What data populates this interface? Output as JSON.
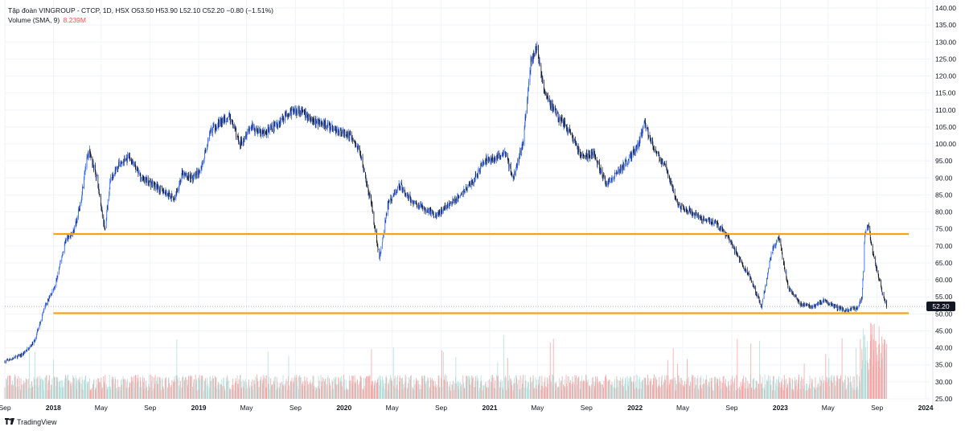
{
  "header": {
    "symbol_line": "Tập đoàn VINGROUP - CTCP, 1D, HSX  O53.50  H53.90  L52.10  C52.20  −0.80 (−1.51%)",
    "volume_label": "Volume (SMA, 9)",
    "volume_value": "8.239M"
  },
  "branding": {
    "name": "TradingView",
    "icon": "tradingview-logo-icon"
  },
  "last_price_label": "52.20",
  "colors": {
    "up": "#2962ff",
    "down": "#131722",
    "level": "#f7a21b",
    "vol_up": "#b2dfdb",
    "vol_down": "#f8a5a5",
    "grid": "#f0f3fa"
  },
  "chart_data": {
    "type": "candlestick",
    "ylim": [
      25,
      140
    ],
    "y_ticks": [
      "140.00",
      "135.00",
      "130.00",
      "125.00",
      "120.00",
      "115.00",
      "110.00",
      "105.00",
      "100.00",
      "95.00",
      "90.00",
      "85.00",
      "80.00",
      "75.00",
      "70.00",
      "65.00",
      "60.00",
      "55.00",
      "50.00",
      "45.00",
      "40.00",
      "35.00",
      "30.00",
      "25.00"
    ],
    "x_ticks": [
      "Sep",
      "2018",
      "May",
      "Sep",
      "2019",
      "May",
      "Sep",
      "2020",
      "May",
      "Sep",
      "2021",
      "May",
      "Sep",
      "2022",
      "May",
      "Sep",
      "2023",
      "May",
      "Sep",
      "2024"
    ],
    "x_range": [
      "2017-09-01",
      "2024-01-15"
    ],
    "last_price": 52.2,
    "horizontal_levels": [
      73.5,
      50.2
    ],
    "price_path": [
      [
        "2017-09-01",
        36
      ],
      [
        "2017-10-15",
        38
      ],
      [
        "2017-11-15",
        42
      ],
      [
        "2017-12-10",
        52
      ],
      [
        "2018-01-05",
        58
      ],
      [
        "2018-02-01",
        72
      ],
      [
        "2018-02-20",
        74
      ],
      [
        "2018-03-10",
        82
      ],
      [
        "2018-03-20",
        92
      ],
      [
        "2018-04-01",
        98
      ],
      [
        "2018-04-20",
        90
      ],
      [
        "2018-05-10",
        75
      ],
      [
        "2018-05-25",
        90
      ],
      [
        "2018-06-15",
        94
      ],
      [
        "2018-07-10",
        96
      ],
      [
        "2018-08-10",
        90
      ],
      [
        "2018-09-10",
        88
      ],
      [
        "2018-10-05",
        86
      ],
      [
        "2018-11-01",
        84
      ],
      [
        "2018-11-20",
        91
      ],
      [
        "2018-12-15",
        90
      ],
      [
        "2019-01-05",
        92
      ],
      [
        "2019-02-01",
        104
      ],
      [
        "2019-02-20",
        106
      ],
      [
        "2019-03-20",
        108
      ],
      [
        "2019-04-15",
        100
      ],
      [
        "2019-05-10",
        105
      ],
      [
        "2019-06-10",
        103
      ],
      [
        "2019-07-10",
        105
      ],
      [
        "2019-08-10",
        109
      ],
      [
        "2019-09-10",
        110
      ],
      [
        "2019-10-10",
        107
      ],
      [
        "2019-11-10",
        106
      ],
      [
        "2019-12-10",
        104
      ],
      [
        "2020-01-10",
        103
      ],
      [
        "2020-02-10",
        98
      ],
      [
        "2020-03-10",
        82
      ],
      [
        "2020-03-30",
        66
      ],
      [
        "2020-04-20",
        82
      ],
      [
        "2020-05-20",
        88
      ],
      [
        "2020-06-20",
        83
      ],
      [
        "2020-07-20",
        81
      ],
      [
        "2020-08-20",
        79
      ],
      [
        "2020-09-20",
        82
      ],
      [
        "2020-10-20",
        85
      ],
      [
        "2020-11-20",
        89
      ],
      [
        "2020-12-20",
        95
      ],
      [
        "2021-01-15",
        96
      ],
      [
        "2021-02-10",
        97
      ],
      [
        "2021-03-01",
        90
      ],
      [
        "2021-03-25",
        100
      ],
      [
        "2021-04-15",
        125
      ],
      [
        "2021-04-30",
        128
      ],
      [
        "2021-05-20",
        115
      ],
      [
        "2021-06-20",
        108
      ],
      [
        "2021-07-20",
        104
      ],
      [
        "2021-08-20",
        96
      ],
      [
        "2021-09-20",
        97
      ],
      [
        "2021-10-20",
        88
      ],
      [
        "2021-11-20",
        92
      ],
      [
        "2021-12-20",
        96
      ],
      [
        "2022-01-10",
        100
      ],
      [
        "2022-01-25",
        106
      ],
      [
        "2022-02-20",
        98
      ],
      [
        "2022-03-20",
        93
      ],
      [
        "2022-04-20",
        82
      ],
      [
        "2022-05-20",
        80
      ],
      [
        "2022-06-20",
        78
      ],
      [
        "2022-07-20",
        77
      ],
      [
        "2022-08-20",
        73
      ],
      [
        "2022-09-20",
        66
      ],
      [
        "2022-10-20",
        60
      ],
      [
        "2022-11-15",
        52
      ],
      [
        "2022-12-10",
        68
      ],
      [
        "2022-12-28",
        73
      ],
      [
        "2023-01-20",
        58
      ],
      [
        "2023-02-20",
        53
      ],
      [
        "2023-03-20",
        52
      ],
      [
        "2023-04-20",
        54
      ],
      [
        "2023-05-20",
        52
      ],
      [
        "2023-06-20",
        51
      ],
      [
        "2023-07-15",
        52
      ],
      [
        "2023-07-25",
        55
      ],
      [
        "2023-08-01",
        73
      ],
      [
        "2023-08-10",
        76
      ],
      [
        "2023-08-20",
        68
      ],
      [
        "2023-09-01",
        63
      ],
      [
        "2023-09-15",
        56
      ],
      [
        "2023-09-25",
        52.2
      ]
    ]
  }
}
